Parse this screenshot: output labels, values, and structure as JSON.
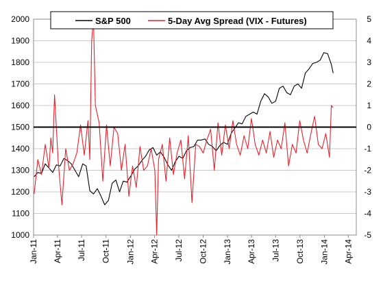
{
  "chart_data": {
    "type": "line",
    "title": "",
    "xlabel": "",
    "ylabel_left": "",
    "ylabel_right": "",
    "legend_position": "top-center",
    "grid": "horizontal",
    "colors": {
      "sp500": "#000000",
      "spread": "#e8202a",
      "grid": "#c8c8c8",
      "zero_line": "#000000"
    },
    "x_axis": {
      "type": "date",
      "range": [
        "2011-01-01",
        "2014-05-01"
      ],
      "tick_labels": [
        "Jan-11",
        "Apr-11",
        "Jul-11",
        "Oct-11",
        "Jan-12",
        "Apr-12",
        "Jul-12",
        "Oct-12",
        "Jan-13",
        "Apr-13",
        "Jul-13",
        "Oct-13",
        "Jan-14",
        "Apr-14"
      ],
      "tick_dates": [
        "2011-01-01",
        "2011-04-01",
        "2011-07-01",
        "2011-10-01",
        "2012-01-01",
        "2012-04-01",
        "2012-07-01",
        "2012-10-01",
        "2013-01-01",
        "2013-04-01",
        "2013-07-01",
        "2013-10-01",
        "2014-01-01",
        "2014-04-01"
      ]
    },
    "y_left": {
      "range": [
        1000,
        2000
      ],
      "tick_labels": [
        "1000",
        "1100",
        "1200",
        "1300",
        "1400",
        "1500",
        "1600",
        "1700",
        "1800",
        "1900",
        "2000"
      ]
    },
    "y_right": {
      "range": [
        -5,
        5
      ],
      "zero_line_value": 0,
      "tick_labels": [
        "-5",
        "-4",
        "-3",
        "-2",
        "-1",
        "0",
        "1",
        "2",
        "3",
        "4",
        "5"
      ]
    },
    "series": [
      {
        "name": "S&P 500",
        "axis": "left",
        "x": [
          "2011-01-03",
          "2011-01-17",
          "2011-01-31",
          "2011-02-14",
          "2011-02-28",
          "2011-03-14",
          "2011-03-28",
          "2011-04-11",
          "2011-04-25",
          "2011-05-09",
          "2011-05-23",
          "2011-06-06",
          "2011-06-20",
          "2011-07-05",
          "2011-07-18",
          "2011-08-01",
          "2011-08-15",
          "2011-08-29",
          "2011-09-12",
          "2011-09-26",
          "2011-10-10",
          "2011-10-24",
          "2011-11-07",
          "2011-11-21",
          "2011-12-05",
          "2011-12-19",
          "2012-01-03",
          "2012-01-17",
          "2012-01-30",
          "2012-02-13",
          "2012-02-27",
          "2012-03-12",
          "2012-03-26",
          "2012-04-09",
          "2012-04-23",
          "2012-05-07",
          "2012-05-21",
          "2012-06-04",
          "2012-06-18",
          "2012-07-02",
          "2012-07-16",
          "2012-07-30",
          "2012-08-13",
          "2012-08-27",
          "2012-09-10",
          "2012-09-24",
          "2012-10-08",
          "2012-10-22",
          "2012-11-05",
          "2012-11-19",
          "2012-12-03",
          "2012-12-17",
          "2012-12-31",
          "2013-01-14",
          "2013-01-28",
          "2013-02-11",
          "2013-02-25",
          "2013-03-11",
          "2013-03-25",
          "2013-04-08",
          "2013-04-22",
          "2013-05-06",
          "2013-05-20",
          "2013-06-03",
          "2013-06-17",
          "2013-07-01",
          "2013-07-15",
          "2013-07-29",
          "2013-08-12",
          "2013-08-26",
          "2013-09-09",
          "2013-09-23",
          "2013-10-07",
          "2013-10-21",
          "2013-11-04",
          "2013-11-18",
          "2013-12-02",
          "2013-12-16",
          "2013-12-30",
          "2014-01-13",
          "2014-01-27",
          "2014-02-03"
        ],
        "values": [
          1270,
          1290,
          1285,
          1330,
          1310,
          1290,
          1325,
          1320,
          1355,
          1345,
          1330,
          1300,
          1270,
          1330,
          1320,
          1205,
          1190,
          1215,
          1180,
          1140,
          1160,
          1240,
          1255,
          1200,
          1250,
          1245,
          1275,
          1305,
          1320,
          1345,
          1365,
          1395,
          1405,
          1370,
          1385,
          1360,
          1325,
          1300,
          1340,
          1365,
          1355,
          1390,
          1405,
          1410,
          1440,
          1440,
          1445,
          1420,
          1410,
          1390,
          1415,
          1430,
          1420,
          1470,
          1495,
          1520,
          1515,
          1550,
          1560,
          1570,
          1560,
          1620,
          1655,
          1640,
          1610,
          1620,
          1680,
          1690,
          1660,
          1650,
          1690,
          1700,
          1680,
          1750,
          1770,
          1795,
          1800,
          1810,
          1845,
          1840,
          1790,
          1750
        ]
      },
      {
        "name": "5-Day Avg Spread (VIX - Futures)",
        "axis": "right",
        "x": [
          "2011-01-03",
          "2011-01-17",
          "2011-01-31",
          "2011-02-14",
          "2011-02-28",
          "2011-03-07",
          "2011-03-14",
          "2011-03-21",
          "2011-04-04",
          "2011-04-18",
          "2011-05-02",
          "2011-05-16",
          "2011-05-30",
          "2011-06-13",
          "2011-06-27",
          "2011-07-11",
          "2011-07-25",
          "2011-08-01",
          "2011-08-08",
          "2011-08-15",
          "2011-08-22",
          "2011-09-05",
          "2011-09-19",
          "2011-10-03",
          "2011-10-17",
          "2011-10-31",
          "2011-11-14",
          "2011-11-28",
          "2011-12-12",
          "2011-12-26",
          "2012-01-09",
          "2012-01-23",
          "2012-02-06",
          "2012-02-20",
          "2012-03-05",
          "2012-03-19",
          "2012-04-02",
          "2012-04-09",
          "2012-04-16",
          "2012-04-30",
          "2012-05-14",
          "2012-05-28",
          "2012-06-11",
          "2012-06-25",
          "2012-07-09",
          "2012-07-23",
          "2012-08-06",
          "2012-08-20",
          "2012-09-03",
          "2012-09-17",
          "2012-10-01",
          "2012-10-15",
          "2012-10-29",
          "2012-11-12",
          "2012-11-26",
          "2012-12-10",
          "2012-12-24",
          "2013-01-07",
          "2013-01-21",
          "2013-02-04",
          "2013-02-18",
          "2013-03-04",
          "2013-03-18",
          "2013-04-01",
          "2013-04-15",
          "2013-04-29",
          "2013-05-13",
          "2013-05-27",
          "2013-06-10",
          "2013-06-24",
          "2013-07-08",
          "2013-07-22",
          "2013-08-05",
          "2013-08-19",
          "2013-09-02",
          "2013-09-16",
          "2013-09-30",
          "2013-10-14",
          "2013-10-28",
          "2013-11-11",
          "2013-11-25",
          "2013-12-09",
          "2013-12-23",
          "2014-01-06",
          "2014-01-20",
          "2014-01-27",
          "2014-02-03"
        ],
        "values": [
          -3.1,
          -1.5,
          -2.2,
          -0.8,
          -1.9,
          -0.5,
          -1.2,
          1.5,
          -1.6,
          -3.6,
          -1.0,
          -2.0,
          -1.7,
          -1.2,
          0.1,
          -1.3,
          0.3,
          -1.5,
          4.0,
          5.0,
          1.0,
          0.2,
          -2.5,
          0.1,
          -1.8,
          0.0,
          -0.3,
          -2.0,
          -0.8,
          -3.2,
          -1.8,
          -2.8,
          -0.9,
          -2.0,
          -1.8,
          -1.0,
          -2.0,
          -5.0,
          -1.5,
          -0.8,
          -2.5,
          -0.5,
          -2.2,
          -1.2,
          -0.6,
          -2.4,
          -0.4,
          -3.5,
          -0.8,
          -0.9,
          -1.2,
          -0.6,
          -0.1,
          -2.0,
          0.2,
          -1.3,
          0.1,
          -1.0,
          0.3,
          -0.8,
          -1.3,
          -0.4,
          -1.0,
          0.4,
          -0.8,
          -1.3,
          -0.6,
          -1.2,
          -0.2,
          -1.4,
          -0.6,
          -1.0,
          0.2,
          -1.8,
          -0.8,
          -1.2,
          0.3,
          -0.6,
          -1.2,
          -0.3,
          0.5,
          -0.8,
          -1.0,
          -0.3,
          -1.4,
          1.0,
          0.9
        ]
      }
    ]
  }
}
